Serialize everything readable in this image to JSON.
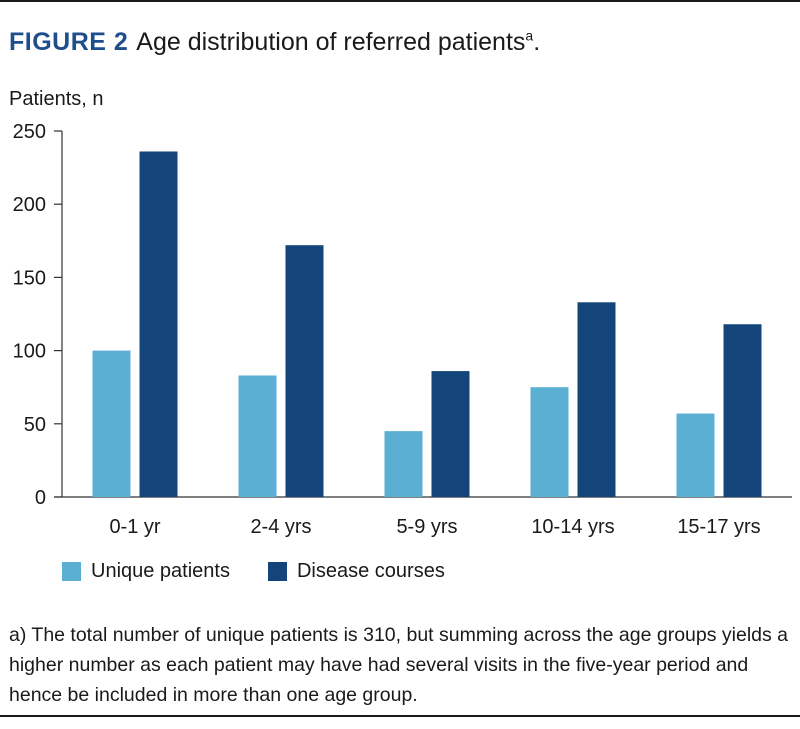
{
  "figure": {
    "label": "FIGURE 2",
    "title": "Age distribution of referred patients",
    "title_sup": "a",
    "title_end": "."
  },
  "footnote": "a) The total number of unique patients is 310, but summing across the age groups yields a higher number as each patient may have had several visits in the five-year period and hence be included in more than one age group.",
  "colors": {
    "unique": "#5aafd3",
    "courses": "#13457b",
    "axis": "#333333",
    "label": "#1f4e8c"
  },
  "chart_data": {
    "type": "bar",
    "ylabel": "Patients, n",
    "xlabel": "",
    "ylim": [
      0,
      250
    ],
    "yticks": [
      0,
      50,
      100,
      150,
      200,
      250
    ],
    "categories": [
      "0-1 yr",
      "2-4 yrs",
      "5-9 yrs",
      "10-14 yrs",
      "15-17 yrs"
    ],
    "series": [
      {
        "name": "Unique patients",
        "values": [
          100,
          83,
          45,
          75,
          57
        ]
      },
      {
        "name": "Disease courses",
        "values": [
          236,
          172,
          86,
          133,
          118
        ]
      }
    ],
    "grid": false,
    "legend": "bottom-left"
  }
}
